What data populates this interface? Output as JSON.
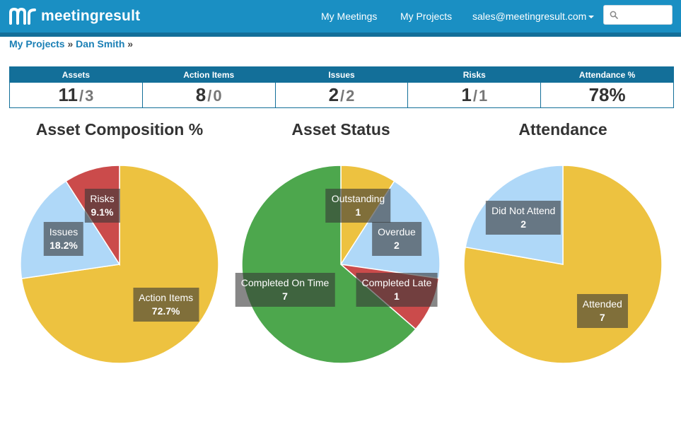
{
  "app": {
    "logo_text": "meetingresult"
  },
  "nav": {
    "my_meetings": "My Meetings",
    "my_projects": "My Projects",
    "account": "sales@meetingresult.com",
    "search_placeholder": ""
  },
  "breadcrumb": {
    "root": "My Projects",
    "sep1": "»",
    "current": "Dan Smith",
    "sep2": "»"
  },
  "stats": [
    {
      "label": "Assets",
      "value": "11",
      "sub": "3"
    },
    {
      "label": "Action Items",
      "value": "8",
      "sub": "0"
    },
    {
      "label": "Issues",
      "value": "2",
      "sub": "2"
    },
    {
      "label": "Risks",
      "value": "1",
      "sub": "1"
    },
    {
      "label": "Attendance %",
      "value": "78%",
      "sub": null
    }
  ],
  "chart_data": [
    {
      "type": "pie",
      "title": "Asset Composition %",
      "slices": [
        {
          "name": "Action Items",
          "value": 72.7,
          "display": "72.7%",
          "color": "#edc240"
        },
        {
          "name": "Issues",
          "value": 18.2,
          "display": "18.2%",
          "color": "#afd8f8"
        },
        {
          "name": "Risks",
          "value": 9.1,
          "display": "9.1%",
          "color": "#cb4b4b"
        }
      ]
    },
    {
      "type": "pie",
      "title": "Asset Status",
      "slices": [
        {
          "name": "Outstanding",
          "value": 1,
          "display": "1",
          "color": "#edc240"
        },
        {
          "name": "Overdue",
          "value": 2,
          "display": "2",
          "color": "#afd8f8"
        },
        {
          "name": "Completed Late",
          "value": 1,
          "display": "1",
          "color": "#cb4b4b"
        },
        {
          "name": "Completed On Time",
          "value": 7,
          "display": "7",
          "color": "#4da74d"
        }
      ]
    },
    {
      "type": "pie",
      "title": "Attendance",
      "slices": [
        {
          "name": "Attended",
          "value": 7,
          "display": "7",
          "color": "#edc240"
        },
        {
          "name": "Did Not Attend",
          "value": 2,
          "display": "2",
          "color": "#afd8f8"
        }
      ]
    }
  ]
}
